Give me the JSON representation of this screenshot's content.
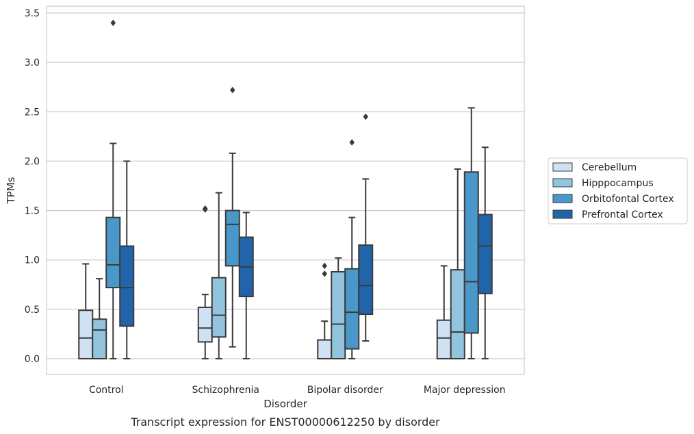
{
  "chart_data": {
    "type": "box",
    "caption": "Transcript expression for ENST00000612250 by disorder",
    "xlabel": "Disorder",
    "ylabel": "TPMs",
    "ylim": [
      -0.16,
      3.57
    ],
    "yticks": [
      "0.0",
      "0.5",
      "1.0",
      "1.5",
      "2.0",
      "2.5",
      "3.0",
      "3.5"
    ],
    "ytick_values": [
      0,
      0.5,
      1.0,
      1.5,
      2.0,
      2.5,
      3.0,
      3.5
    ],
    "grid": true,
    "legend_position": "right",
    "categories": [
      "Control",
      "Schizophrenia",
      "Bipolar disorder",
      "Major depression"
    ],
    "series": [
      {
        "name": "Cerebellum",
        "color": "#cfe1f2",
        "boxes": [
          {
            "whislo": 0.0,
            "q1": 0.0,
            "med": 0.21,
            "q3": 0.49,
            "whishi": 0.96,
            "fliers": []
          },
          {
            "whislo": 0.0,
            "q1": 0.17,
            "med": 0.31,
            "q3": 0.52,
            "whishi": 0.65,
            "fliers": [
              1.51,
              1.52
            ]
          },
          {
            "whislo": 0.0,
            "q1": 0.0,
            "med": 0.0,
            "q3": 0.19,
            "whishi": 0.38,
            "fliers": [
              0.86,
              0.94
            ]
          },
          {
            "whislo": 0.0,
            "q1": 0.0,
            "med": 0.21,
            "q3": 0.39,
            "whishi": 0.94,
            "fliers": []
          }
        ]
      },
      {
        "name": "Hipppocampus",
        "color": "#93c4de",
        "boxes": [
          {
            "whislo": 0.0,
            "q1": 0.0,
            "med": 0.29,
            "q3": 0.4,
            "whishi": 0.81,
            "fliers": []
          },
          {
            "whislo": 0.0,
            "q1": 0.22,
            "med": 0.44,
            "q3": 0.82,
            "whishi": 1.68,
            "fliers": []
          },
          {
            "whislo": 0.0,
            "q1": 0.0,
            "med": 0.35,
            "q3": 0.88,
            "whishi": 1.02,
            "fliers": []
          },
          {
            "whislo": 0.0,
            "q1": 0.0,
            "med": 0.27,
            "q3": 0.9,
            "whishi": 1.92,
            "fliers": []
          }
        ]
      },
      {
        "name": "Orbitofontal Cortex",
        "color": "#4a98c9",
        "boxes": [
          {
            "whislo": 0.0,
            "q1": 0.72,
            "med": 0.95,
            "q3": 1.43,
            "whishi": 2.18,
            "fliers": [
              3.4
            ]
          },
          {
            "whislo": 0.12,
            "q1": 0.94,
            "med": 1.36,
            "q3": 1.5,
            "whishi": 2.08,
            "fliers": [
              2.72
            ]
          },
          {
            "whislo": 0.0,
            "q1": 0.1,
            "med": 0.47,
            "q3": 0.91,
            "whishi": 1.43,
            "fliers": [
              2.19
            ]
          },
          {
            "whislo": 0.0,
            "q1": 0.26,
            "med": 0.78,
            "q3": 1.89,
            "whishi": 2.54,
            "fliers": []
          }
        ]
      },
      {
        "name": "Prefrontal Cortex",
        "color": "#2264aa",
        "boxes": [
          {
            "whislo": 0.0,
            "q1": 0.33,
            "med": 0.72,
            "q3": 1.14,
            "whishi": 2.0,
            "fliers": []
          },
          {
            "whislo": 0.0,
            "q1": 0.63,
            "med": 0.93,
            "q3": 1.23,
            "whishi": 1.48,
            "fliers": []
          },
          {
            "whislo": 0.18,
            "q1": 0.45,
            "med": 0.74,
            "q3": 1.15,
            "whishi": 1.82,
            "fliers": [
              2.45
            ]
          },
          {
            "whislo": 0.0,
            "q1": 0.66,
            "med": 1.14,
            "q3": 1.46,
            "whishi": 2.14,
            "fliers": []
          }
        ]
      }
    ]
  }
}
